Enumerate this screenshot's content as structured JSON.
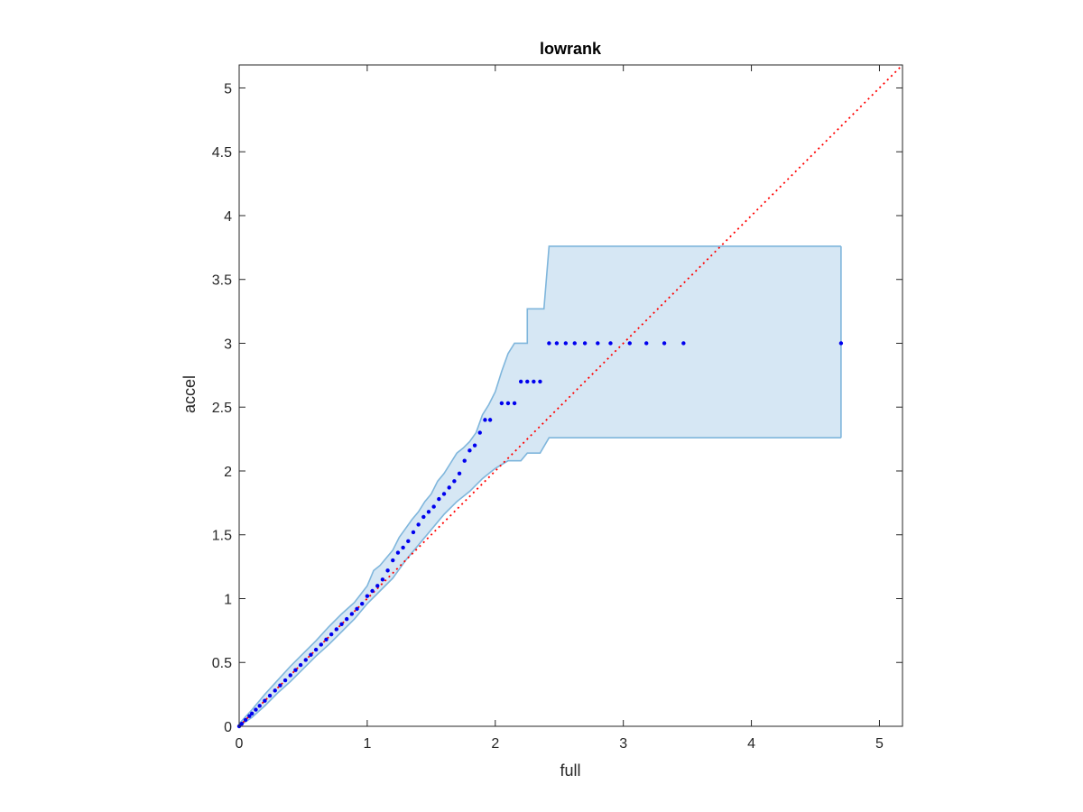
{
  "chart_data": {
    "type": "scatter",
    "title": "lowrank",
    "xlabel": "full",
    "ylabel": "accel",
    "xlim": [
      0,
      5.18
    ],
    "ylim": [
      0,
      5.18
    ],
    "xticks": [
      0,
      1,
      2,
      3,
      4,
      5
    ],
    "xtick_labels": [
      "0",
      "1",
      "2",
      "3",
      "4",
      "5"
    ],
    "yticks": [
      0,
      0.5,
      1,
      1.5,
      2,
      2.5,
      3,
      3.5,
      4,
      4.5,
      5
    ],
    "ytick_labels": [
      "0",
      "0.5",
      "1",
      "1.5",
      "2",
      "2.5",
      "3",
      "3.5",
      "4",
      "4.5",
      "5"
    ],
    "grid": false,
    "legend": "none",
    "reference_line": {
      "style": "dotted",
      "color": "#ff0000",
      "points": [
        [
          0,
          0
        ],
        [
          5.18,
          5.18
        ]
      ]
    },
    "band": {
      "color_fill": "#d6e7f4",
      "color_edge": "#7fb6dc",
      "upper": [
        [
          0.0,
          0.02
        ],
        [
          0.1,
          0.13
        ],
        [
          0.2,
          0.25
        ],
        [
          0.3,
          0.36
        ],
        [
          0.4,
          0.47
        ],
        [
          0.5,
          0.57
        ],
        [
          0.6,
          0.67
        ],
        [
          0.7,
          0.78
        ],
        [
          0.8,
          0.88
        ],
        [
          0.9,
          0.97
        ],
        [
          1.0,
          1.1
        ],
        [
          1.05,
          1.22
        ],
        [
          1.1,
          1.26
        ],
        [
          1.2,
          1.38
        ],
        [
          1.25,
          1.48
        ],
        [
          1.3,
          1.55
        ],
        [
          1.35,
          1.62
        ],
        [
          1.4,
          1.68
        ],
        [
          1.45,
          1.76
        ],
        [
          1.5,
          1.82
        ],
        [
          1.55,
          1.92
        ],
        [
          1.6,
          1.98
        ],
        [
          1.65,
          2.06
        ],
        [
          1.7,
          2.14
        ],
        [
          1.75,
          2.18
        ],
        [
          1.8,
          2.23
        ],
        [
          1.85,
          2.3
        ],
        [
          1.9,
          2.44
        ],
        [
          1.95,
          2.52
        ],
        [
          2.0,
          2.62
        ],
        [
          2.05,
          2.78
        ],
        [
          2.1,
          2.92
        ],
        [
          2.15,
          3.0
        ],
        [
          2.25,
          3.0
        ],
        [
          2.25,
          3.27
        ],
        [
          2.38,
          3.27
        ],
        [
          2.42,
          3.76
        ],
        [
          4.7,
          3.76
        ]
      ],
      "lower": [
        [
          0.0,
          0.0
        ],
        [
          0.1,
          0.07
        ],
        [
          0.2,
          0.16
        ],
        [
          0.3,
          0.26
        ],
        [
          0.4,
          0.35
        ],
        [
          0.5,
          0.45
        ],
        [
          0.6,
          0.55
        ],
        [
          0.7,
          0.64
        ],
        [
          0.8,
          0.74
        ],
        [
          0.9,
          0.84
        ],
        [
          1.0,
          0.96
        ],
        [
          1.1,
          1.06
        ],
        [
          1.2,
          1.16
        ],
        [
          1.3,
          1.3
        ],
        [
          1.4,
          1.42
        ],
        [
          1.5,
          1.54
        ],
        [
          1.6,
          1.66
        ],
        [
          1.7,
          1.76
        ],
        [
          1.8,
          1.84
        ],
        [
          1.9,
          1.94
        ],
        [
          2.0,
          2.02
        ],
        [
          2.1,
          2.08
        ],
        [
          2.2,
          2.08
        ],
        [
          2.25,
          2.14
        ],
        [
          2.35,
          2.14
        ],
        [
          2.42,
          2.26
        ],
        [
          4.7,
          2.26
        ]
      ]
    },
    "points": {
      "color": "#0000ee",
      "x": [
        0.0,
        0.02,
        0.05,
        0.08,
        0.1,
        0.13,
        0.16,
        0.2,
        0.24,
        0.28,
        0.32,
        0.36,
        0.4,
        0.44,
        0.48,
        0.52,
        0.56,
        0.6,
        0.64,
        0.68,
        0.72,
        0.76,
        0.8,
        0.84,
        0.88,
        0.92,
        0.96,
        1.0,
        1.04,
        1.08,
        1.12,
        1.16,
        1.2,
        1.24,
        1.28,
        1.32,
        1.36,
        1.4,
        1.44,
        1.48,
        1.52,
        1.56,
        1.6,
        1.64,
        1.68,
        1.72,
        1.76,
        1.8,
        1.84,
        1.88,
        1.92,
        1.96,
        2.05,
        2.1,
        2.15,
        2.2,
        2.25,
        2.3,
        2.35,
        2.42,
        2.48,
        2.55,
        2.62,
        2.7,
        2.8,
        2.9,
        3.05,
        3.18,
        3.32,
        3.47,
        4.7
      ],
      "y": [
        0.0,
        0.02,
        0.05,
        0.08,
        0.1,
        0.13,
        0.16,
        0.2,
        0.24,
        0.28,
        0.32,
        0.36,
        0.4,
        0.44,
        0.48,
        0.52,
        0.56,
        0.6,
        0.64,
        0.68,
        0.72,
        0.76,
        0.8,
        0.84,
        0.88,
        0.92,
        0.96,
        1.02,
        1.06,
        1.1,
        1.15,
        1.22,
        1.3,
        1.36,
        1.4,
        1.45,
        1.52,
        1.58,
        1.64,
        1.68,
        1.72,
        1.78,
        1.82,
        1.87,
        1.92,
        1.98,
        2.08,
        2.16,
        2.2,
        2.3,
        2.4,
        2.4,
        2.53,
        2.53,
        2.53,
        2.7,
        2.7,
        2.7,
        2.7,
        3.0,
        3.0,
        3.0,
        3.0,
        3.0,
        3.0,
        3.0,
        3.0,
        3.0,
        3.0,
        3.0,
        3.0
      ]
    }
  }
}
